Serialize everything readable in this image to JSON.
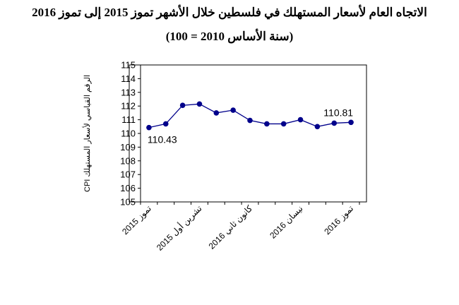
{
  "chart_data": {
    "type": "line",
    "title": "الاتجاه العام لأسعار المستهلك في فلسطين خلال الأشهر تموز 2015 إلى تموز 2016",
    "subtitle": "(سنة الأساس 2010 = 100)",
    "ylabel": "الرقم القياسي لأسعار المستهلك CPI",
    "xlabel": "",
    "ylim": [
      105,
      115
    ],
    "yticks": [
      105,
      106,
      107,
      108,
      109,
      110,
      111,
      112,
      113,
      114,
      115
    ],
    "grid": false,
    "x_tick_labels": [
      {
        "index": 0,
        "label": "تموز 2015"
      },
      {
        "index": 3,
        "label": "تشرين أول 2015"
      },
      {
        "index": 6,
        "label": "كانون ثاني 2016"
      },
      {
        "index": 9,
        "label": "نيسان 2016"
      },
      {
        "index": 12,
        "label": "تموز 2016"
      }
    ],
    "series": [
      {
        "values": [
          110.43,
          110.7,
          112.05,
          112.15,
          111.5,
          111.7,
          110.95,
          110.7,
          110.7,
          111.0,
          110.5,
          110.75,
          110.81
        ]
      }
    ],
    "data_labels": [
      {
        "index": 0,
        "text": "110.43"
      },
      {
        "index": 12,
        "text": "110.81"
      }
    ],
    "colors": {
      "line": "#00008b",
      "marker": "#00008b",
      "frame": "#000000"
    }
  }
}
